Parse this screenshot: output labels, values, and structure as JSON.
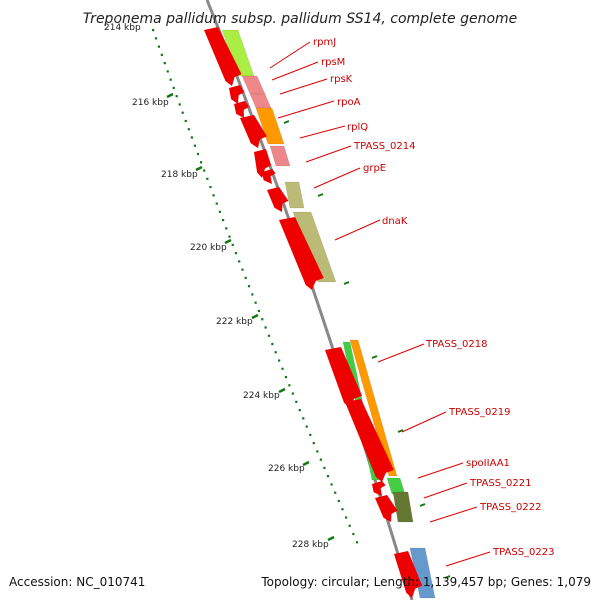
{
  "title": "Treponema pallidum subsp. pallidum SS14, complete genome",
  "footer": {
    "accession": "Accession: NC_010741",
    "summary": "Topology: circular; Length: 1,139,457 bp; Genes: 1,079"
  },
  "scale": {
    "unit": "kbp",
    "ticks": [
      {
        "label": "214 kbp"
      },
      {
        "label": "216 kbp"
      },
      {
        "label": "218 kbp"
      },
      {
        "label": "220 kbp"
      },
      {
        "label": "222 kbp"
      },
      {
        "label": "224 kbp"
      },
      {
        "label": "226 kbp"
      },
      {
        "label": "228 kbp"
      }
    ]
  },
  "gene_labels": [
    {
      "name": "rpmJ"
    },
    {
      "name": "rpsM"
    },
    {
      "name": "rpsK"
    },
    {
      "name": "rpoA"
    },
    {
      "name": "rplQ"
    },
    {
      "name": "TPASS_0214"
    },
    {
      "name": "grpE"
    },
    {
      "name": "dnaK"
    },
    {
      "name": "TPASS_0218"
    },
    {
      "name": "TPASS_0219"
    },
    {
      "name": "spoIIAA1"
    },
    {
      "name": "TPASS_0221"
    },
    {
      "name": "TPASS_0222"
    },
    {
      "name": "TPASS_0223"
    }
  ],
  "colors": {
    "gene_arrow": "#ee0000",
    "backbone": "#888888",
    "tick": "#117711",
    "label_line": "#dd0000",
    "feature_light_green": "#aaee44",
    "feature_pink": "#ee8888",
    "feature_orange": "#ff9900",
    "feature_khaki": "#bbbb77",
    "feature_green": "#44cc44",
    "feature_olive": "#667733",
    "feature_blue": "#6699cc"
  }
}
